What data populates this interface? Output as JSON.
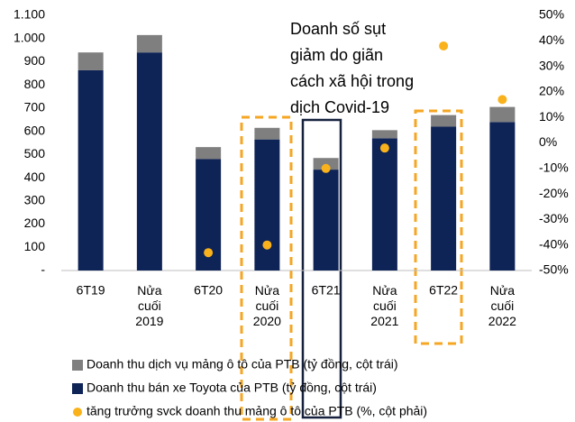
{
  "chart_data": {
    "type": "bar",
    "stacked": true,
    "annotation": [
      "Doanh số sụt",
      "giảm do giãn",
      "cách xã hội trong",
      "dịch Covid-19"
    ],
    "categories": [
      "6T19",
      "Nửa cuối 2019",
      "6T20",
      "Nửa cuối 2020",
      "6T21",
      "Nửa cuối 2021",
      "6T22",
      "Nửa cuối 2022"
    ],
    "series": [
      {
        "name": "Doanh thu dịch vụ mảng ô tô của PTB (tỷ đồng, cột trái)",
        "color": "#7f7f7f",
        "values": [
          77,
          75,
          52,
          50,
          50,
          35,
          50,
          65
        ]
      },
      {
        "name": "Doanh thu bán xe Toyota của PTB (tỷ đồng, cột trái)",
        "color": "#0e2356",
        "values": [
          863,
          940,
          480,
          565,
          435,
          570,
          620,
          640
        ]
      },
      {
        "name": "tăng trưởng svck doanh thu mảng ô tô của PTB (%, cột phải)",
        "color": "#f9b21b",
        "type": "scatter",
        "axis": "y2",
        "values": [
          null,
          null,
          -43,
          -40,
          -10,
          -2,
          38,
          17
        ]
      }
    ],
    "ylim": [
      0,
      1100
    ],
    "yticks": [
      {
        "value": 0,
        "label": "-"
      },
      100,
      200,
      300,
      400,
      500,
      600,
      700,
      800,
      900,
      {
        "value": 1000,
        "label": "1.000"
      },
      {
        "value": 1100,
        "label": "1.100"
      }
    ],
    "y2lim": [
      -50,
      50
    ],
    "y2ticks": [
      {
        "value": -50,
        "label": "-50%"
      },
      {
        "value": -40,
        "label": "-40%"
      },
      {
        "value": -30,
        "label": "-30%"
      },
      {
        "value": -20,
        "label": "-20%"
      },
      {
        "value": -10,
        "label": "-10%"
      },
      {
        "value": 0,
        "label": "0%"
      },
      {
        "value": 10,
        "label": "10%"
      },
      {
        "value": 20,
        "label": "20%"
      },
      {
        "value": 30,
        "label": "30%"
      },
      {
        "value": 40,
        "label": "40%"
      },
      {
        "value": 50,
        "label": "50%"
      }
    ],
    "legend": "bottom"
  }
}
